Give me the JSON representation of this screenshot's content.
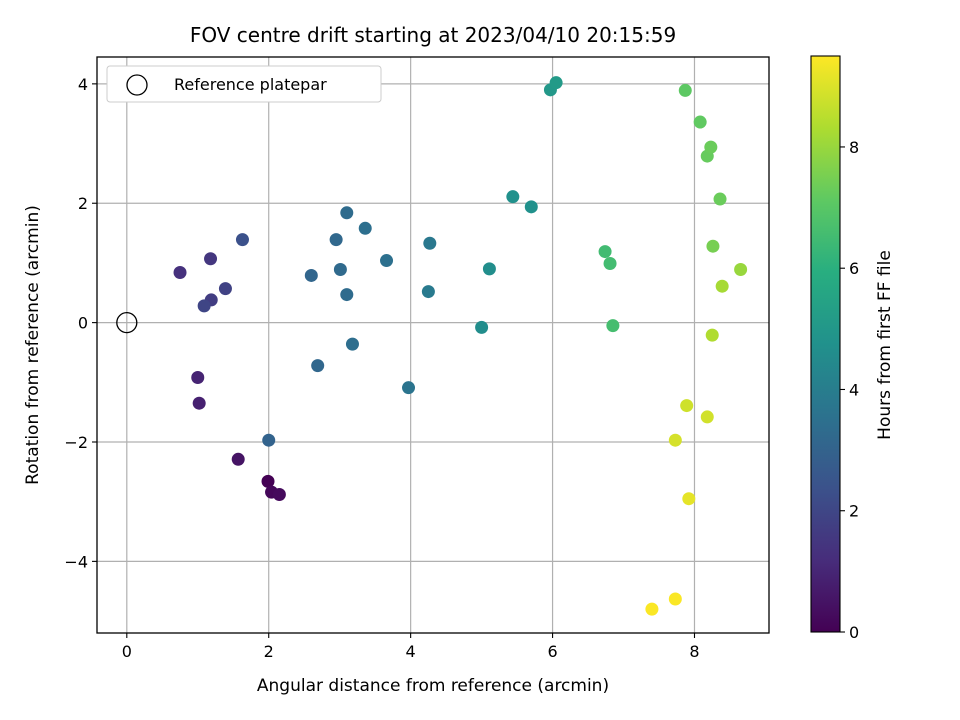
{
  "chart_data": {
    "type": "scatter",
    "title": "FOV centre drift starting at 2023/04/10 20:15:59",
    "xlabel": "Angular distance from reference (arcmin)",
    "ylabel": "Rotation from reference (arcmin)",
    "xlim": [
      -0.42,
      9.05
    ],
    "ylim": [
      -5.2,
      4.45
    ],
    "xticks": [
      0,
      2,
      4,
      6,
      8
    ],
    "yticks": [
      -4,
      -2,
      0,
      2,
      4
    ],
    "grid": true,
    "legend": {
      "placement": "top-left",
      "entries": [
        "Reference platepar"
      ]
    },
    "reference_point": {
      "label": "Reference platepar",
      "x": 0,
      "y": 0
    },
    "colorbar": {
      "label": "Hours from first FF file",
      "colormap": "viridis",
      "range": [
        0,
        9.5
      ],
      "ticks": [
        0,
        2,
        4,
        6,
        8
      ]
    },
    "points": [
      {
        "x": 1.99,
        "y": -2.66,
        "c": 0.0
      },
      {
        "x": 2.04,
        "y": -2.84,
        "c": 0.15
      },
      {
        "x": 2.15,
        "y": -2.88,
        "c": 0.25
      },
      {
        "x": 1.57,
        "y": -2.29,
        "c": 0.5
      },
      {
        "x": 1.02,
        "y": -1.35,
        "c": 0.85
      },
      {
        "x": 1.0,
        "y": -0.92,
        "c": 0.95
      },
      {
        "x": 0.75,
        "y": 0.84,
        "c": 1.3
      },
      {
        "x": 1.18,
        "y": 1.07,
        "c": 1.5
      },
      {
        "x": 1.39,
        "y": 0.57,
        "c": 1.85
      },
      {
        "x": 1.19,
        "y": 0.38,
        "c": 1.7
      },
      {
        "x": 1.09,
        "y": 0.28,
        "c": 1.95
      },
      {
        "x": 1.63,
        "y": 1.39,
        "c": 2.35
      },
      {
        "x": 2.0,
        "y": -1.97,
        "c": 3.0
      },
      {
        "x": 2.6,
        "y": 0.79,
        "c": 3.1
      },
      {
        "x": 2.69,
        "y": -0.72,
        "c": 3.15
      },
      {
        "x": 2.95,
        "y": 1.39,
        "c": 3.2
      },
      {
        "x": 3.01,
        "y": 0.89,
        "c": 3.25
      },
      {
        "x": 3.1,
        "y": 1.84,
        "c": 3.3
      },
      {
        "x": 3.1,
        "y": 0.47,
        "c": 3.3
      },
      {
        "x": 3.18,
        "y": -0.36,
        "c": 3.4
      },
      {
        "x": 3.36,
        "y": 1.58,
        "c": 3.45
      },
      {
        "x": 3.66,
        "y": 1.04,
        "c": 3.5
      },
      {
        "x": 3.97,
        "y": -1.09,
        "c": 3.65
      },
      {
        "x": 4.27,
        "y": 1.33,
        "c": 3.8
      },
      {
        "x": 4.25,
        "y": 0.52,
        "c": 3.85
      },
      {
        "x": 5.0,
        "y": -0.08,
        "c": 4.6
      },
      {
        "x": 5.11,
        "y": 0.9,
        "c": 4.65
      },
      {
        "x": 5.44,
        "y": 2.11,
        "c": 4.75
      },
      {
        "x": 5.7,
        "y": 1.94,
        "c": 4.75
      },
      {
        "x": 5.97,
        "y": 3.9,
        "c": 5.05
      },
      {
        "x": 6.05,
        "y": 4.02,
        "c": 5.1
      },
      {
        "x": 6.74,
        "y": 1.19,
        "c": 6.5
      },
      {
        "x": 6.81,
        "y": 0.99,
        "c": 6.55
      },
      {
        "x": 6.85,
        "y": -0.05,
        "c": 6.6
      },
      {
        "x": 7.87,
        "y": 3.89,
        "c": 7.1
      },
      {
        "x": 8.08,
        "y": 3.36,
        "c": 7.15
      },
      {
        "x": 8.18,
        "y": 2.79,
        "c": 7.25
      },
      {
        "x": 8.23,
        "y": 2.94,
        "c": 7.3
      },
      {
        "x": 8.36,
        "y": 2.07,
        "c": 7.3
      },
      {
        "x": 8.26,
        "y": 1.28,
        "c": 7.5
      },
      {
        "x": 8.65,
        "y": 0.89,
        "c": 8.0
      },
      {
        "x": 8.39,
        "y": 0.61,
        "c": 8.2
      },
      {
        "x": 8.25,
        "y": -0.21,
        "c": 8.35
      },
      {
        "x": 7.89,
        "y": -1.39,
        "c": 8.8
      },
      {
        "x": 8.18,
        "y": -1.58,
        "c": 8.85
      },
      {
        "x": 7.73,
        "y": -1.97,
        "c": 8.9
      },
      {
        "x": 7.92,
        "y": -2.95,
        "c": 9.15
      },
      {
        "x": 7.4,
        "y": -4.8,
        "c": 9.45
      },
      {
        "x": 7.73,
        "y": -4.63,
        "c": 9.45
      }
    ]
  }
}
